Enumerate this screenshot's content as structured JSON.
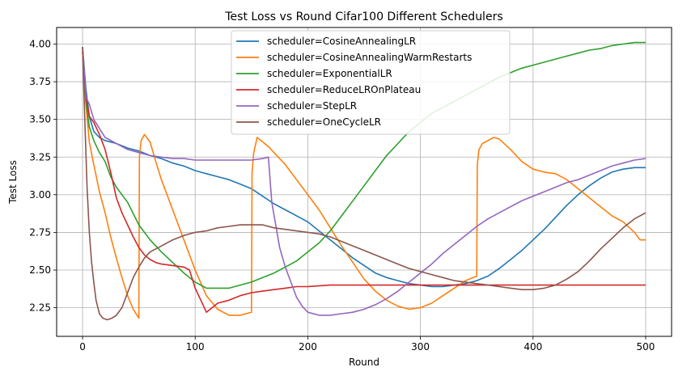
{
  "chart_data": {
    "type": "line",
    "title": "Test Loss vs Round Cifar100 Different Schedulers",
    "xlabel": "Round",
    "ylabel": "Test Loss",
    "xlim": [
      -23,
      523
    ],
    "ylim": [
      2.06,
      4.11
    ],
    "xticks": [
      0,
      100,
      200,
      300,
      400,
      500
    ],
    "yticks": [
      2.25,
      2.5,
      2.75,
      3.0,
      3.25,
      3.5,
      3.75,
      4.0
    ],
    "ytick_labels": [
      "2.25",
      "2.50",
      "2.75",
      "3.00",
      "3.25",
      "3.50",
      "3.75",
      "4.00"
    ],
    "grid": true,
    "legend_position": "top-center",
    "series": [
      {
        "name": "scheduler=CosineAnnealingLR",
        "color": "#1f77b4",
        "x": [
          0,
          3,
          6,
          10,
          15,
          20,
          30,
          40,
          50,
          60,
          70,
          80,
          90,
          100,
          110,
          120,
          130,
          140,
          150,
          160,
          170,
          180,
          190,
          200,
          210,
          220,
          230,
          240,
          250,
          260,
          270,
          280,
          290,
          300,
          310,
          320,
          330,
          340,
          350,
          360,
          370,
          380,
          390,
          400,
          410,
          420,
          430,
          440,
          450,
          460,
          470,
          480,
          490,
          500
        ],
        "y": [
          3.98,
          3.7,
          3.52,
          3.42,
          3.38,
          3.36,
          3.34,
          3.31,
          3.29,
          3.26,
          3.24,
          3.21,
          3.19,
          3.16,
          3.14,
          3.12,
          3.1,
          3.07,
          3.04,
          2.99,
          2.94,
          2.9,
          2.86,
          2.82,
          2.76,
          2.7,
          2.64,
          2.58,
          2.53,
          2.48,
          2.45,
          2.43,
          2.41,
          2.4,
          2.39,
          2.39,
          2.4,
          2.41,
          2.43,
          2.46,
          2.51,
          2.57,
          2.63,
          2.7,
          2.77,
          2.85,
          2.93,
          3.0,
          3.06,
          3.11,
          3.15,
          3.17,
          3.18,
          3.18
        ]
      },
      {
        "name": "scheduler=CosineAnnealingWarmRestarts",
        "color": "#ff7f0e",
        "x": [
          0,
          3,
          6,
          10,
          15,
          20,
          25,
          30,
          35,
          40,
          45,
          50,
          50.5,
          52,
          55,
          60,
          65,
          70,
          80,
          90,
          100,
          110,
          120,
          130,
          140,
          150,
          150.5,
          152,
          155,
          160,
          165,
          170,
          180,
          190,
          200,
          210,
          220,
          230,
          240,
          250,
          260,
          270,
          280,
          290,
          300,
          310,
          320,
          330,
          340,
          350,
          350.5,
          352,
          355,
          360,
          365,
          370,
          380,
          390,
          400,
          410,
          420,
          430,
          440,
          450,
          460,
          470,
          480,
          490,
          495,
          500
        ],
        "y": [
          3.95,
          3.6,
          3.35,
          3.2,
          3.02,
          2.88,
          2.72,
          2.58,
          2.45,
          2.33,
          2.24,
          2.18,
          3.25,
          3.36,
          3.4,
          3.35,
          3.22,
          3.1,
          2.9,
          2.7,
          2.5,
          2.33,
          2.24,
          2.2,
          2.2,
          2.22,
          3.15,
          3.28,
          3.38,
          3.35,
          3.32,
          3.28,
          3.2,
          3.1,
          3.0,
          2.9,
          2.78,
          2.66,
          2.55,
          2.44,
          2.36,
          2.3,
          2.26,
          2.24,
          2.25,
          2.28,
          2.33,
          2.38,
          2.43,
          2.46,
          3.2,
          3.3,
          3.34,
          3.36,
          3.38,
          3.37,
          3.3,
          3.22,
          3.17,
          3.15,
          3.14,
          3.1,
          3.04,
          2.98,
          2.92,
          2.86,
          2.82,
          2.75,
          2.7,
          2.7
        ]
      },
      {
        "name": "scheduler=ExponentialLR",
        "color": "#2ca02c",
        "x": [
          0,
          3,
          6,
          10,
          15,
          20,
          25,
          30,
          40,
          50,
          60,
          70,
          80,
          90,
          100,
          110,
          120,
          130,
          140,
          150,
          160,
          170,
          180,
          190,
          200,
          210,
          220,
          230,
          240,
          250,
          260,
          270,
          280,
          290,
          300,
          310,
          320,
          330,
          340,
          350,
          360,
          370,
          380,
          390,
          400,
          410,
          420,
          430,
          440,
          450,
          460,
          470,
          480,
          490,
          500
        ],
        "y": [
          3.98,
          3.62,
          3.45,
          3.36,
          3.28,
          3.22,
          3.12,
          3.05,
          2.95,
          2.8,
          2.7,
          2.62,
          2.55,
          2.48,
          2.42,
          2.38,
          2.38,
          2.38,
          2.4,
          2.42,
          2.45,
          2.48,
          2.52,
          2.56,
          2.62,
          2.68,
          2.76,
          2.86,
          2.96,
          3.06,
          3.16,
          3.26,
          3.34,
          3.42,
          3.48,
          3.54,
          3.58,
          3.62,
          3.66,
          3.7,
          3.74,
          3.78,
          3.81,
          3.84,
          3.86,
          3.88,
          3.9,
          3.92,
          3.94,
          3.96,
          3.97,
          3.99,
          4.0,
          4.01,
          4.01
        ]
      },
      {
        "name": "scheduler=ReduceLROnPlateau",
        "color": "#d62728",
        "x": [
          0,
          3,
          6,
          10,
          15,
          20,
          25,
          30,
          35,
          40,
          45,
          50,
          55,
          60,
          65,
          70,
          80,
          90,
          95,
          100,
          105,
          110,
          115,
          120,
          130,
          140,
          150,
          160,
          170,
          180,
          190,
          200,
          220,
          250,
          300,
          350,
          400,
          450,
          500
        ],
        "y": [
          3.95,
          3.65,
          3.52,
          3.48,
          3.4,
          3.3,
          3.15,
          2.98,
          2.88,
          2.8,
          2.72,
          2.65,
          2.6,
          2.57,
          2.55,
          2.54,
          2.53,
          2.52,
          2.5,
          2.38,
          2.3,
          2.22,
          2.25,
          2.28,
          2.3,
          2.33,
          2.35,
          2.36,
          2.37,
          2.38,
          2.39,
          2.39,
          2.4,
          2.4,
          2.4,
          2.4,
          2.4,
          2.4,
          2.4
        ]
      },
      {
        "name": "scheduler=StepLR",
        "color": "#9467bd",
        "x": [
          0,
          3,
          6,
          10,
          20,
          30,
          40,
          50,
          60,
          70,
          80,
          90,
          100,
          110,
          120,
          130,
          140,
          150,
          160,
          165,
          168,
          172,
          175,
          180,
          185,
          190,
          195,
          200,
          210,
          220,
          230,
          240,
          250,
          260,
          270,
          280,
          290,
          300,
          310,
          320,
          330,
          340,
          350,
          360,
          370,
          380,
          390,
          400,
          410,
          420,
          430,
          440,
          450,
          460,
          470,
          480,
          490,
          500
        ],
        "y": [
          3.98,
          3.65,
          3.6,
          3.5,
          3.38,
          3.34,
          3.3,
          3.28,
          3.26,
          3.25,
          3.24,
          3.24,
          3.23,
          3.23,
          3.23,
          3.23,
          3.23,
          3.23,
          3.24,
          3.25,
          2.95,
          2.78,
          2.65,
          2.52,
          2.42,
          2.32,
          2.26,
          2.22,
          2.2,
          2.2,
          2.21,
          2.22,
          2.24,
          2.27,
          2.31,
          2.36,
          2.42,
          2.48,
          2.54,
          2.61,
          2.67,
          2.73,
          2.79,
          2.84,
          2.88,
          2.92,
          2.96,
          2.99,
          3.02,
          3.05,
          3.08,
          3.1,
          3.13,
          3.16,
          3.19,
          3.21,
          3.23,
          3.24
        ]
      },
      {
        "name": "scheduler=OneCycleLR",
        "color": "#8c564b",
        "x": [
          0,
          2,
          4,
          6,
          8,
          10,
          12,
          15,
          18,
          22,
          26,
          30,
          35,
          40,
          45,
          50,
          55,
          60,
          70,
          80,
          90,
          100,
          110,
          120,
          130,
          140,
          150,
          160,
          170,
          180,
          190,
          200,
          210,
          220,
          230,
          240,
          250,
          260,
          270,
          280,
          290,
          300,
          310,
          320,
          330,
          340,
          350,
          360,
          370,
          380,
          390,
          400,
          410,
          420,
          430,
          440,
          450,
          460,
          470,
          480,
          490,
          500
        ],
        "y": [
          3.98,
          3.5,
          3.05,
          2.75,
          2.55,
          2.42,
          2.3,
          2.21,
          2.18,
          2.17,
          2.18,
          2.2,
          2.25,
          2.35,
          2.45,
          2.52,
          2.58,
          2.62,
          2.66,
          2.7,
          2.73,
          2.75,
          2.76,
          2.78,
          2.79,
          2.8,
          2.8,
          2.8,
          2.78,
          2.77,
          2.76,
          2.75,
          2.74,
          2.72,
          2.69,
          2.66,
          2.63,
          2.6,
          2.57,
          2.54,
          2.51,
          2.49,
          2.47,
          2.45,
          2.43,
          2.42,
          2.41,
          2.4,
          2.39,
          2.38,
          2.37,
          2.37,
          2.38,
          2.4,
          2.44,
          2.49,
          2.56,
          2.64,
          2.71,
          2.78,
          2.84,
          2.88
        ]
      }
    ]
  }
}
